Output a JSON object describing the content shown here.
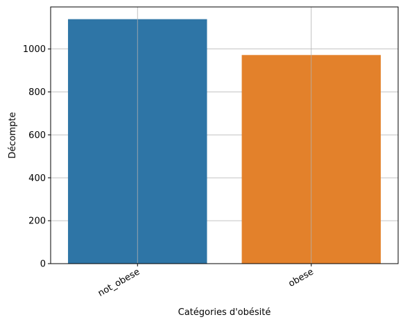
{
  "chart_data": {
    "type": "bar",
    "categories": [
      "not_obese",
      "obese"
    ],
    "values": [
      1139,
      972
    ],
    "colors": [
      "#2e75a6",
      "#e3812b"
    ],
    "title": "",
    "xlabel": "Catégories d'obésité",
    "ylabel": "Décompte",
    "ylim": [
      0,
      1196
    ],
    "yticks": [
      0,
      200,
      400,
      600,
      800,
      1000
    ],
    "ytick_labels": [
      "0",
      "200",
      "400",
      "600",
      "800",
      "1000"
    ],
    "grid": true,
    "grid_color": "#b0b0b0",
    "xtick_rotation": -30
  }
}
